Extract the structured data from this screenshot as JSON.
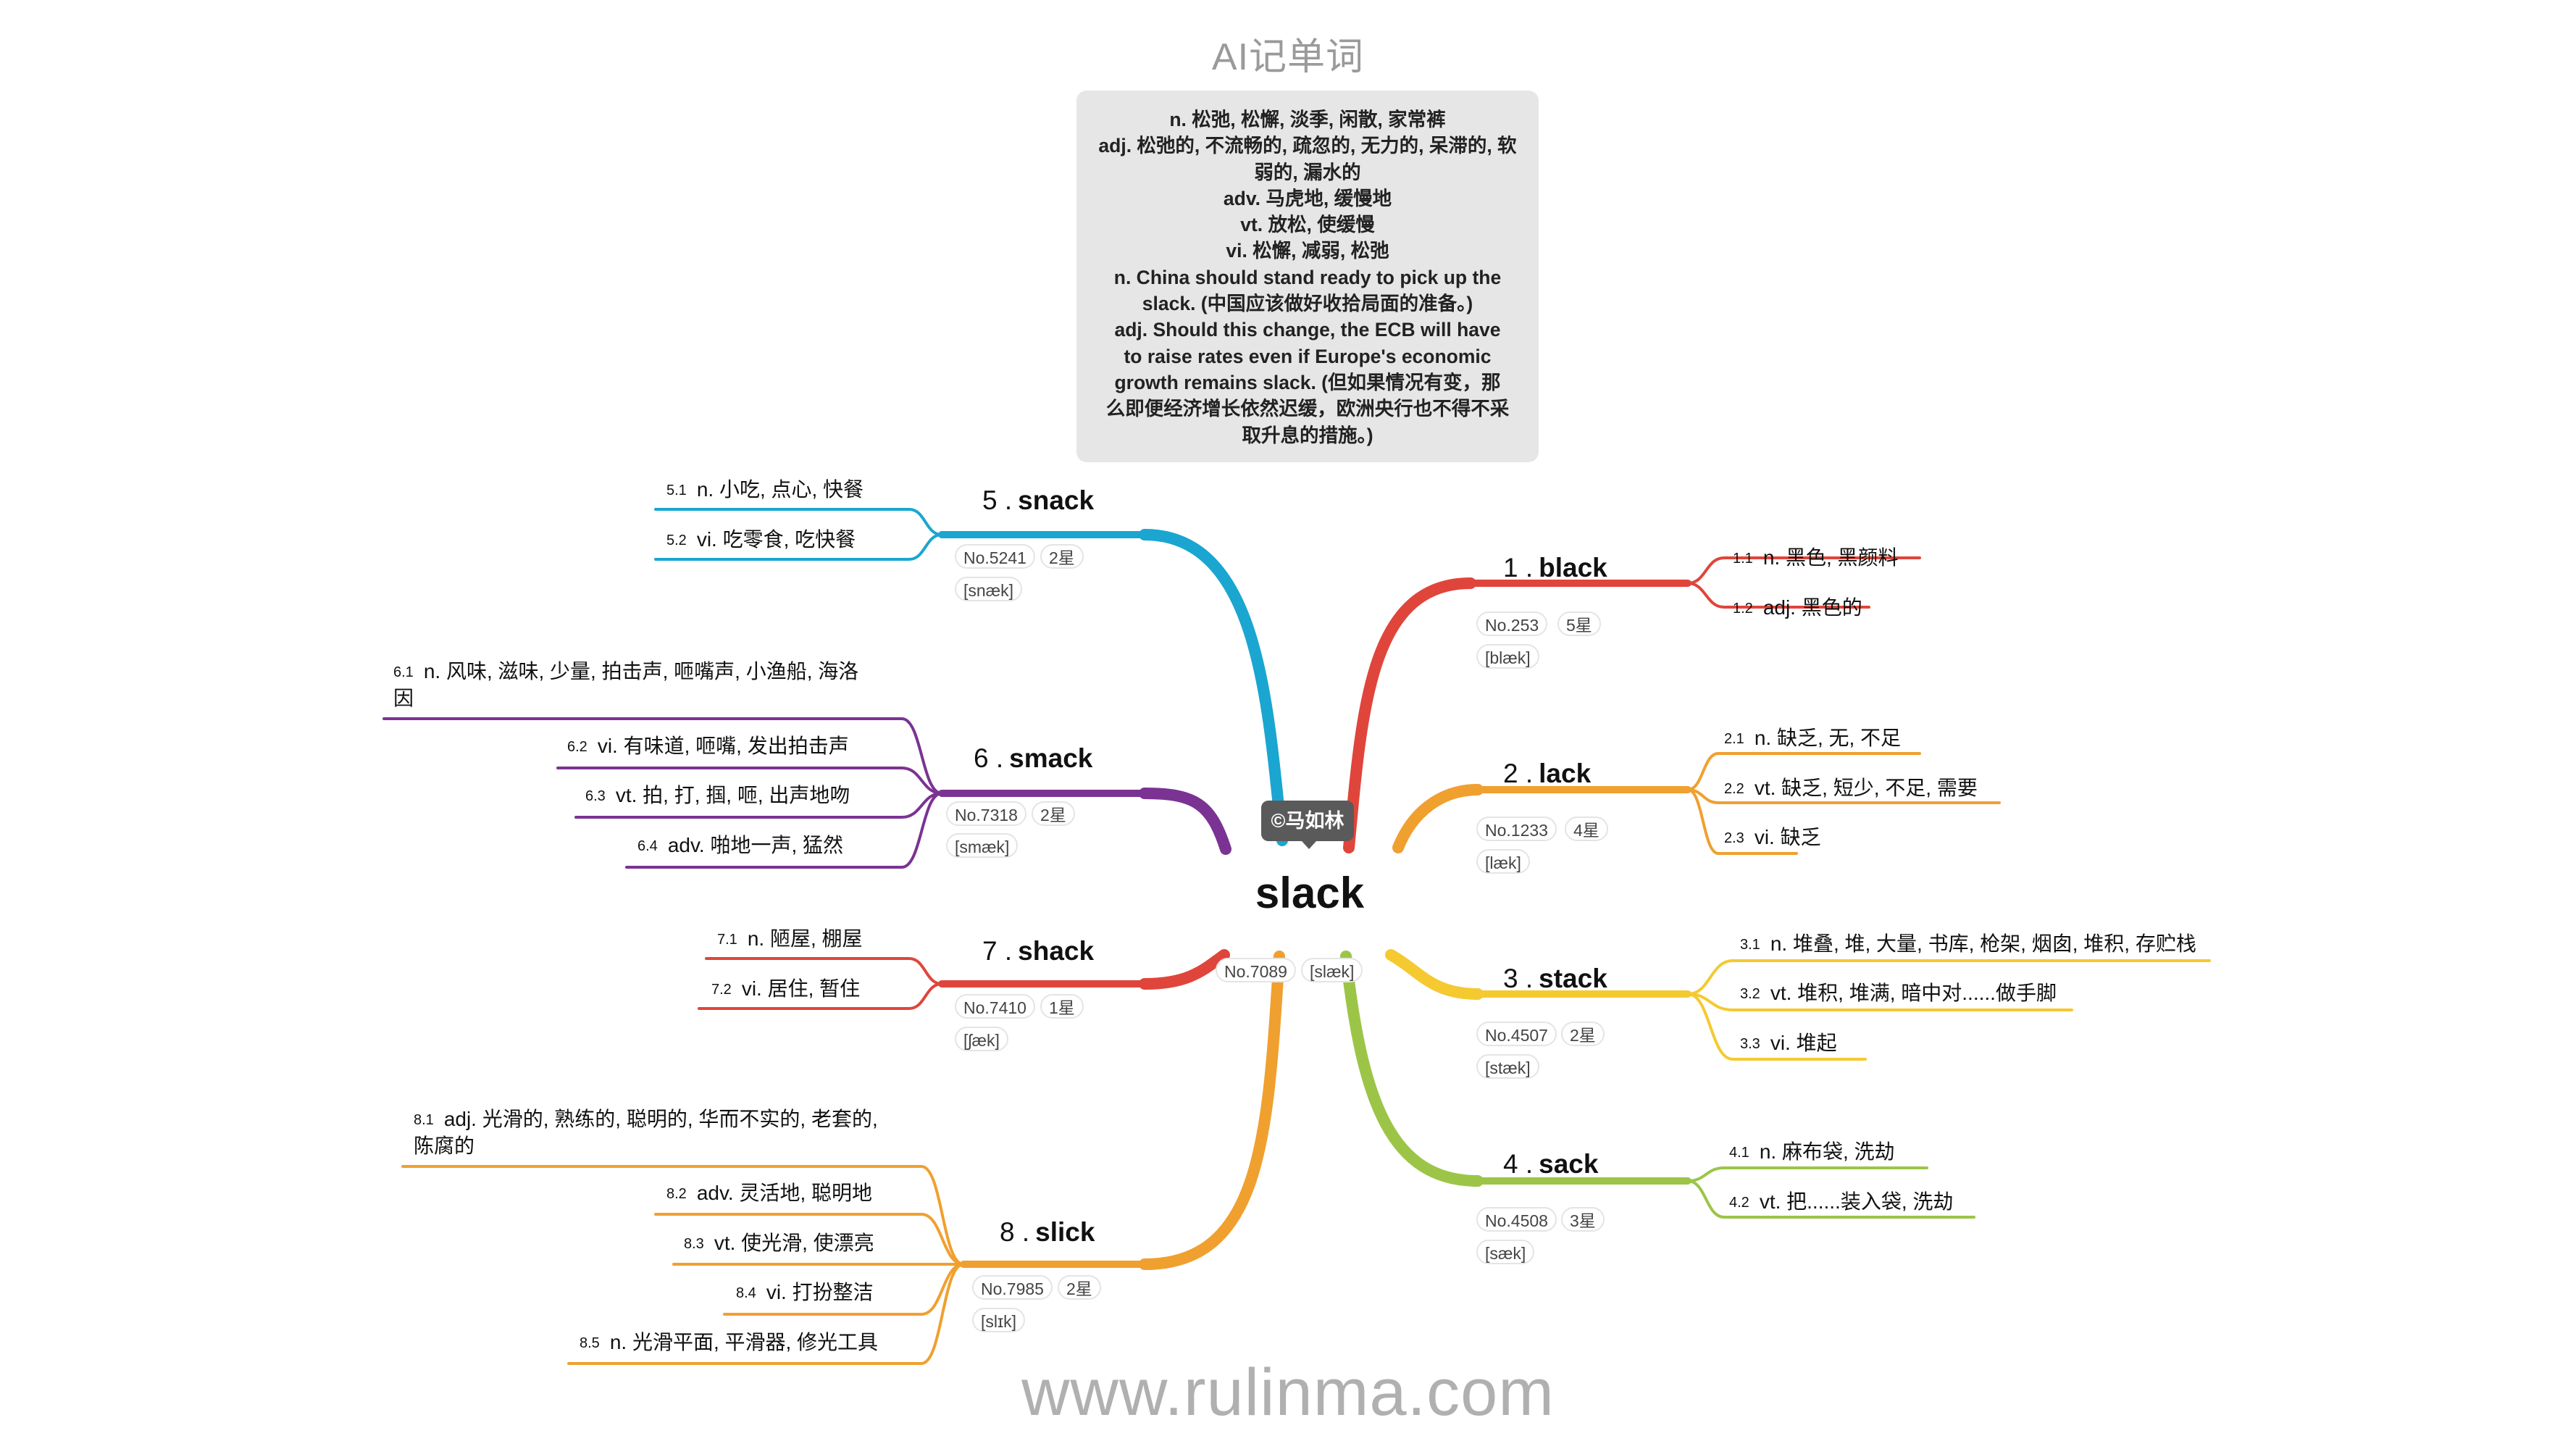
{
  "title": "AI记单词",
  "definition_lines": [
    "n. 松弛, 松懈, 淡季, 闲散, 家常裤",
    "adj. 松弛的, 不流畅的, 疏忽的, 无力的, 呆滞的, 软",
    "弱的, 漏水的",
    "adv. 马虎地, 缓慢地",
    "vt. 放松, 使缓慢",
    "vi. 松懈, 减弱, 松弛",
    "n. China should stand ready to pick up the",
    "slack. (中国应该做好收拾局面的准备。)",
    "adj. Should this change, the ECB will have",
    "to raise rates even if Europe's economic",
    "growth remains slack. (但如果情况有变，那",
    "么即便经济增长依然迟缓，欧洲央行也不得不采",
    "取升息的措施。)"
  ],
  "center": {
    "word": "slack",
    "rank": "No.7089",
    "phonetic": "[slæk]",
    "author": "©马如林"
  },
  "colors": {
    "black": "#e0453b",
    "lack": "#f0a02f",
    "stack": "#f5c930",
    "sack": "#9cc548",
    "snack": "#1aa6d0",
    "smack": "#7b3393",
    "shack": "#e0453b",
    "slick": "#f0a02f"
  },
  "branches": [
    {
      "num": "1 .",
      "word": "black",
      "rank": "No.253",
      "stars": "5星",
      "phonetic": "[blæk]",
      "senses": [
        {
          "num": "1.1",
          "text": "n. 黑色, 黑颜料"
        },
        {
          "num": "1.2",
          "text": "adj. 黑色的"
        }
      ]
    },
    {
      "num": "2 .",
      "word": "lack",
      "rank": "No.1233",
      "stars": "4星",
      "phonetic": "[læk]",
      "senses": [
        {
          "num": "2.1",
          "text": "n. 缺乏, 无, 不足"
        },
        {
          "num": "2.2",
          "text": "vt. 缺乏, 短少, 不足, 需要"
        },
        {
          "num": "2.3",
          "text": "vi. 缺乏"
        }
      ]
    },
    {
      "num": "3 .",
      "word": "stack",
      "rank": "No.4507",
      "stars": "2星",
      "phonetic": "[stæk]",
      "senses": [
        {
          "num": "3.1",
          "text": "n. 堆叠, 堆, 大量, 书库, 枪架, 烟囱, 堆积, 存贮栈"
        },
        {
          "num": "3.2",
          "text": "vt. 堆积, 堆满, 暗中对......做手脚"
        },
        {
          "num": "3.3",
          "text": "vi. 堆起"
        }
      ]
    },
    {
      "num": "4 .",
      "word": "sack",
      "rank": "No.4508",
      "stars": "3星",
      "phonetic": "[sæk]",
      "senses": [
        {
          "num": "4.1",
          "text": "n. 麻布袋, 洗劫"
        },
        {
          "num": "4.2",
          "text": "vt. 把......装入袋, 洗劫"
        }
      ]
    },
    {
      "num": "5 .",
      "word": "snack",
      "rank": "No.5241",
      "stars": "2星",
      "phonetic": "[snæk]",
      "senses": [
        {
          "num": "5.1",
          "text": "n. 小吃, 点心, 快餐"
        },
        {
          "num": "5.2",
          "text": "vi. 吃零食, 吃快餐"
        }
      ]
    },
    {
      "num": "6 .",
      "word": "smack",
      "rank": "No.7318",
      "stars": "2星",
      "phonetic": "[smæk]",
      "senses": [
        {
          "num": "6.1",
          "text": "n. 风味, 滋味, 少量, 拍击声, 咂嘴声, 小渔船, 海洛因"
        },
        {
          "num": "6.2",
          "text": "vi. 有味道, 咂嘴, 发出拍击声"
        },
        {
          "num": "6.3",
          "text": "vt. 拍, 打, 掴, 咂, 出声地吻"
        },
        {
          "num": "6.4",
          "text": "adv. 啪地一声, 猛然"
        }
      ]
    },
    {
      "num": "7 .",
      "word": "shack",
      "rank": "No.7410",
      "stars": "1星",
      "phonetic": "[ʃæk]",
      "senses": [
        {
          "num": "7.1",
          "text": "n. 陋屋, 棚屋"
        },
        {
          "num": "7.2",
          "text": "vi. 居住, 暂住"
        }
      ]
    },
    {
      "num": "8 .",
      "word": "slick",
      "rank": "No.7985",
      "stars": "2星",
      "phonetic": "[slɪk]",
      "senses": [
        {
          "num": "8.1",
          "text": "adj. 光滑的, 熟练的, 聪明的, 华而不实的, 老套的, 陈腐的"
        },
        {
          "num": "8.2",
          "text": "adv. 灵活地, 聪明地"
        },
        {
          "num": "8.3",
          "text": "vt. 使光滑, 使漂亮"
        },
        {
          "num": "8.4",
          "text": "vi. 打扮整洁"
        },
        {
          "num": "8.5",
          "text": "n. 光滑平面, 平滑器, 修光工具"
        }
      ]
    }
  ],
  "footer": "www.rulinma.com"
}
